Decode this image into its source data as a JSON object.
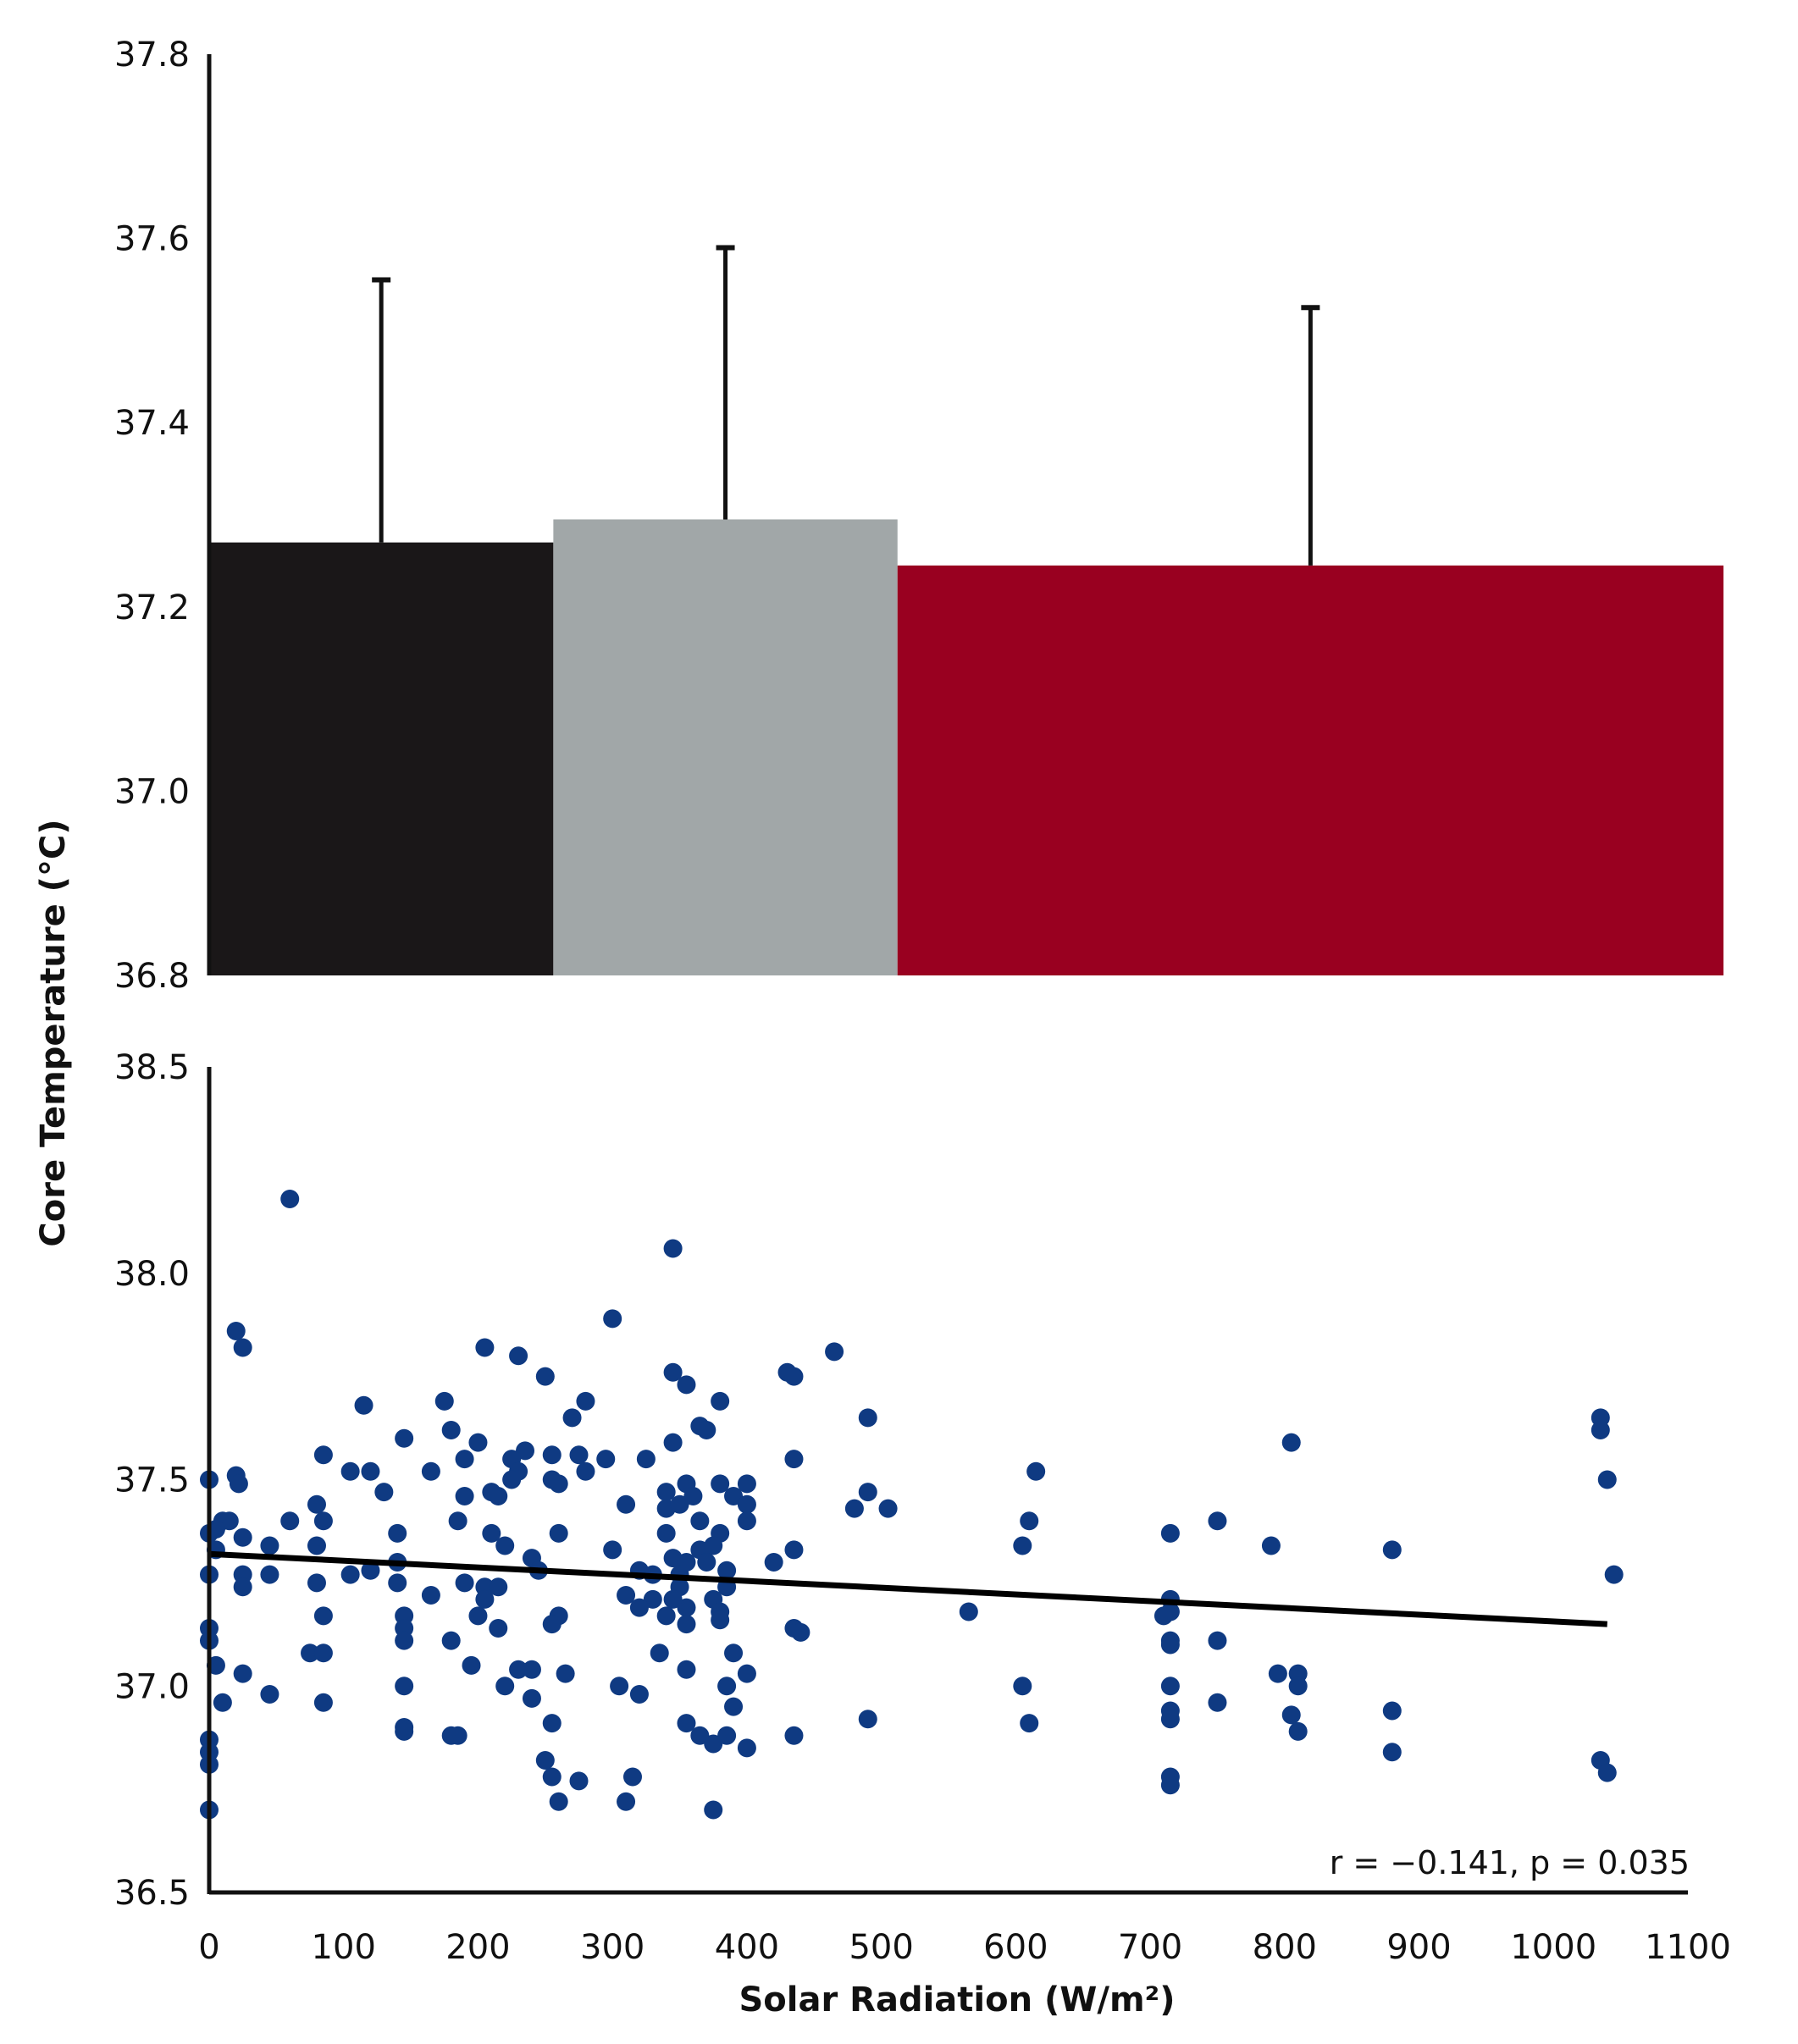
{
  "chart_data": [
    {
      "type": "bar",
      "categories": [
        "0-250",
        "250-500",
        "500-1100"
      ],
      "bins": [
        [
          0,
          250
        ],
        [
          250,
          500
        ],
        [
          500,
          1100
        ]
      ],
      "values": [
        37.27,
        37.295,
        37.245
      ],
      "error_upper": [
        37.555,
        37.59,
        37.525
      ],
      "colors": [
        "#1a1718",
        "#a1a7a8",
        "#990020"
      ],
      "ylim": [
        36.8,
        37.8
      ],
      "yticks": [
        "37.8",
        "37.6",
        "37.4",
        "37.2",
        "37.0",
        "36.8"
      ],
      "xlim": [
        0,
        1100
      ]
    },
    {
      "type": "scatter",
      "xlim": [
        0,
        1100
      ],
      "ylim": [
        36.5,
        38.5
      ],
      "xticks": [
        "0",
        "100",
        "200",
        "300",
        "400",
        "500",
        "600",
        "700",
        "800",
        "900",
        "1000",
        "1100"
      ],
      "yticks": [
        "38.5",
        "38.0",
        "37.5",
        "37.0",
        "36.5"
      ],
      "point_color": "#0f3a82",
      "trendline": {
        "x": [
          0,
          1040
        ],
        "y": [
          37.32,
          37.15
        ]
      },
      "annotation": "r = −0.141, p = 0.035",
      "points": [
        [
          60,
          38.18
        ],
        [
          345,
          38.06
        ],
        [
          20,
          37.86
        ],
        [
          25,
          37.82
        ],
        [
          300,
          37.89
        ],
        [
          205,
          37.82
        ],
        [
          230,
          37.8
        ],
        [
          465,
          37.81
        ],
        [
          250,
          37.75
        ],
        [
          345,
          37.76
        ],
        [
          355,
          37.73
        ],
        [
          430,
          37.76
        ],
        [
          435,
          37.75
        ],
        [
          175,
          37.69
        ],
        [
          280,
          37.69
        ],
        [
          380,
          37.69
        ],
        [
          115,
          37.68
        ],
        [
          270,
          37.65
        ],
        [
          490,
          37.65
        ],
        [
          1035,
          37.65
        ],
        [
          1035,
          37.62
        ],
        [
          180,
          37.62
        ],
        [
          365,
          37.63
        ],
        [
          370,
          37.62
        ],
        [
          145,
          37.6
        ],
        [
          200,
          37.59
        ],
        [
          235,
          37.57
        ],
        [
          345,
          37.59
        ],
        [
          805,
          37.59
        ],
        [
          85,
          37.56
        ],
        [
          190,
          37.55
        ],
        [
          225,
          37.55
        ],
        [
          255,
          37.56
        ],
        [
          275,
          37.56
        ],
        [
          295,
          37.55
        ],
        [
          325,
          37.55
        ],
        [
          435,
          37.55
        ],
        [
          105,
          37.52
        ],
        [
          120,
          37.52
        ],
        [
          165,
          37.52
        ],
        [
          230,
          37.52
        ],
        [
          280,
          37.52
        ],
        [
          615,
          37.52
        ],
        [
          0,
          37.5
        ],
        [
          20,
          37.51
        ],
        [
          22,
          37.49
        ],
        [
          225,
          37.5
        ],
        [
          255,
          37.5
        ],
        [
          260,
          37.49
        ],
        [
          355,
          37.49
        ],
        [
          380,
          37.49
        ],
        [
          400,
          37.49
        ],
        [
          1040,
          37.5
        ],
        [
          130,
          37.47
        ],
        [
          190,
          37.46
        ],
        [
          210,
          37.47
        ],
        [
          215,
          37.46
        ],
        [
          340,
          37.47
        ],
        [
          360,
          37.46
        ],
        [
          390,
          37.46
        ],
        [
          490,
          37.47
        ],
        [
          80,
          37.44
        ],
        [
          310,
          37.44
        ],
        [
          340,
          37.43
        ],
        [
          350,
          37.44
        ],
        [
          400,
          37.44
        ],
        [
          480,
          37.43
        ],
        [
          505,
          37.43
        ],
        [
          10,
          37.4
        ],
        [
          15,
          37.4
        ],
        [
          60,
          37.4
        ],
        [
          85,
          37.4
        ],
        [
          185,
          37.4
        ],
        [
          365,
          37.4
        ],
        [
          400,
          37.4
        ],
        [
          610,
          37.4
        ],
        [
          750,
          37.4
        ],
        [
          0,
          37.37
        ],
        [
          5,
          37.38
        ],
        [
          140,
          37.37
        ],
        [
          210,
          37.37
        ],
        [
          260,
          37.37
        ],
        [
          340,
          37.37
        ],
        [
          380,
          37.37
        ],
        [
          715,
          37.37
        ],
        [
          25,
          37.36
        ],
        [
          5,
          37.33
        ],
        [
          45,
          37.34
        ],
        [
          80,
          37.34
        ],
        [
          220,
          37.34
        ],
        [
          300,
          37.33
        ],
        [
          365,
          37.33
        ],
        [
          375,
          37.34
        ],
        [
          435,
          37.33
        ],
        [
          605,
          37.34
        ],
        [
          790,
          37.34
        ],
        [
          880,
          37.33
        ],
        [
          140,
          37.3
        ],
        [
          240,
          37.31
        ],
        [
          345,
          37.31
        ],
        [
          355,
          37.3
        ],
        [
          370,
          37.3
        ],
        [
          420,
          37.3
        ],
        [
          120,
          37.28
        ],
        [
          245,
          37.28
        ],
        [
          320,
          37.28
        ],
        [
          330,
          37.27
        ],
        [
          350,
          37.27
        ],
        [
          385,
          37.28
        ],
        [
          0,
          37.27
        ],
        [
          25,
          37.27
        ],
        [
          45,
          37.27
        ],
        [
          105,
          37.27
        ],
        [
          1045,
          37.27
        ],
        [
          80,
          37.25
        ],
        [
          140,
          37.25
        ],
        [
          190,
          37.25
        ],
        [
          205,
          37.24
        ],
        [
          215,
          37.24
        ],
        [
          350,
          37.24
        ],
        [
          385,
          37.24
        ],
        [
          25,
          37.24
        ],
        [
          165,
          37.22
        ],
        [
          205,
          37.21
        ],
        [
          310,
          37.22
        ],
        [
          330,
          37.21
        ],
        [
          345,
          37.21
        ],
        [
          375,
          37.21
        ],
        [
          715,
          37.21
        ],
        [
          320,
          37.19
        ],
        [
          355,
          37.19
        ],
        [
          380,
          37.18
        ],
        [
          565,
          37.18
        ],
        [
          715,
          37.18
        ],
        [
          710,
          37.17
        ],
        [
          85,
          37.17
        ],
        [
          145,
          37.17
        ],
        [
          200,
          37.17
        ],
        [
          260,
          37.17
        ],
        [
          340,
          37.17
        ],
        [
          380,
          37.16
        ],
        [
          145,
          37.14
        ],
        [
          215,
          37.14
        ],
        [
          255,
          37.15
        ],
        [
          355,
          37.15
        ],
        [
          435,
          37.14
        ],
        [
          0,
          37.14
        ],
        [
          440,
          37.13
        ],
        [
          0,
          37.11
        ],
        [
          145,
          37.11
        ],
        [
          180,
          37.11
        ],
        [
          715,
          37.11
        ],
        [
          750,
          37.11
        ],
        [
          715,
          37.1
        ],
        [
          75,
          37.08
        ],
        [
          85,
          37.08
        ],
        [
          335,
          37.08
        ],
        [
          390,
          37.08
        ],
        [
          5,
          37.05
        ],
        [
          195,
          37.05
        ],
        [
          230,
          37.04
        ],
        [
          240,
          37.04
        ],
        [
          265,
          37.03
        ],
        [
          355,
          37.04
        ],
        [
          400,
          37.03
        ],
        [
          795,
          37.03
        ],
        [
          810,
          37.03
        ],
        [
          25,
          37.03
        ],
        [
          145,
          37.0
        ],
        [
          220,
          37.0
        ],
        [
          305,
          37.0
        ],
        [
          385,
          37.0
        ],
        [
          605,
          37.0
        ],
        [
          715,
          37.0
        ],
        [
          810,
          37.0
        ],
        [
          45,
          36.98
        ],
        [
          240,
          36.97
        ],
        [
          320,
          36.98
        ],
        [
          10,
          36.96
        ],
        [
          85,
          36.96
        ],
        [
          390,
          36.95
        ],
        [
          750,
          36.96
        ],
        [
          715,
          36.94
        ],
        [
          880,
          36.94
        ],
        [
          255,
          36.91
        ],
        [
          355,
          36.91
        ],
        [
          490,
          36.92
        ],
        [
          715,
          36.92
        ],
        [
          805,
          36.93
        ],
        [
          145,
          36.9
        ],
        [
          610,
          36.91
        ],
        [
          145,
          36.89
        ],
        [
          180,
          36.88
        ],
        [
          185,
          36.88
        ],
        [
          365,
          36.88
        ],
        [
          385,
          36.88
        ],
        [
          435,
          36.88
        ],
        [
          810,
          36.89
        ],
        [
          0,
          36.87
        ],
        [
          375,
          36.86
        ],
        [
          400,
          36.85
        ],
        [
          0,
          36.84
        ],
        [
          880,
          36.84
        ],
        [
          250,
          36.82
        ],
        [
          0,
          36.81
        ],
        [
          1035,
          36.82
        ],
        [
          1040,
          36.79
        ],
        [
          255,
          36.78
        ],
        [
          275,
          36.77
        ],
        [
          315,
          36.78
        ],
        [
          715,
          36.78
        ],
        [
          715,
          36.76
        ],
        [
          260,
          36.72
        ],
        [
          310,
          36.72
        ],
        [
          0,
          36.7
        ],
        [
          375,
          36.7
        ]
      ]
    }
  ],
  "labels": {
    "ylabel": "Core Temperature  (°C)",
    "xlabel": "Solar Radiation  (W/m²)"
  }
}
